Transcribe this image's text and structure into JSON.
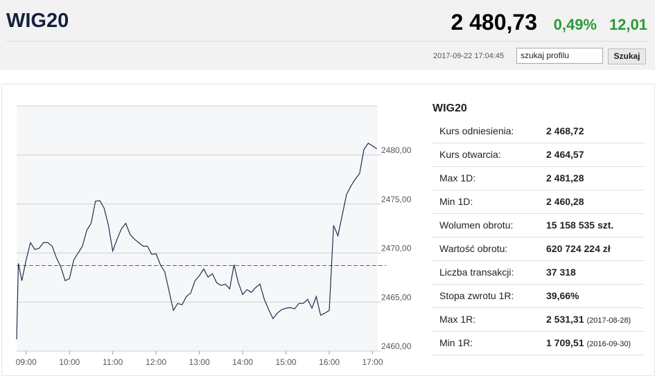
{
  "header": {
    "title": "WIG20",
    "price": "2 480,73",
    "change_pct": "0,49%",
    "change": "12,01",
    "timestamp": "2017-09-22 17:04:45",
    "search_placeholder": "szukaj profilu",
    "search_button": "Szukaj"
  },
  "chart_data": {
    "type": "line",
    "color": "#1f2d4d",
    "reference_line": 2468.72,
    "reference_color": "#d9322f",
    "x": [
      8.78,
      8.82,
      8.9,
      9.0,
      9.1,
      9.2,
      9.3,
      9.4,
      9.5,
      9.6,
      9.7,
      9.8,
      9.9,
      10.0,
      10.1,
      10.2,
      10.3,
      10.4,
      10.5,
      10.6,
      10.7,
      10.8,
      10.9,
      11.0,
      11.1,
      11.2,
      11.3,
      11.4,
      11.5,
      11.6,
      11.7,
      11.8,
      11.9,
      12.0,
      12.1,
      12.2,
      12.3,
      12.4,
      12.5,
      12.6,
      12.7,
      12.8,
      12.9,
      13.0,
      13.1,
      13.2,
      13.3,
      13.4,
      13.5,
      13.6,
      13.7,
      13.8,
      13.9,
      14.0,
      14.1,
      14.2,
      14.3,
      14.4,
      14.5,
      14.6,
      14.7,
      14.8,
      14.9,
      15.0,
      15.1,
      15.2,
      15.3,
      15.4,
      15.5,
      15.6,
      15.7,
      15.8,
      15.9,
      16.0,
      16.1,
      16.2,
      16.3,
      16.4,
      16.5,
      16.6,
      16.7,
      16.8,
      16.9,
      17.0,
      17.1
    ],
    "values": [
      2461.2,
      2468.94,
      2467.18,
      2469.3,
      2471.06,
      2470.35,
      2470.49,
      2471.06,
      2471.06,
      2470.7,
      2469.51,
      2468.59,
      2467.18,
      2467.39,
      2469.3,
      2470.0,
      2470.7,
      2472.32,
      2473.03,
      2475.28,
      2475.35,
      2474.58,
      2472.82,
      2470.21,
      2471.41,
      2472.46,
      2473.03,
      2471.9,
      2471.41,
      2471.06,
      2470.7,
      2470.7,
      2469.86,
      2469.93,
      2468.8,
      2468.1,
      2466.13,
      2464.15,
      2464.86,
      2464.72,
      2465.56,
      2465.92,
      2467.18,
      2467.68,
      2468.38,
      2467.54,
      2467.89,
      2466.97,
      2466.69,
      2466.83,
      2466.34,
      2468.8,
      2466.97,
      2465.77,
      2466.27,
      2465.99,
      2466.48,
      2466.83,
      2465.28,
      2464.23,
      2463.31,
      2463.87,
      2464.23,
      2464.37,
      2464.44,
      2464.3,
      2464.86,
      2464.86,
      2465.28,
      2464.37,
      2465.56,
      2463.66,
      2463.87,
      2464.15,
      2472.82,
      2471.76,
      2473.87,
      2475.99,
      2476.83,
      2477.54,
      2478.1,
      2480.56,
      2481.2,
      2480.92,
      2480.63
    ],
    "xlim": [
      8.78,
      17.12
    ],
    "ylim": [
      2460,
      2485
    ],
    "xticks": [
      {
        "value": 9,
        "label": "09:00"
      },
      {
        "value": 10,
        "label": "10:00"
      },
      {
        "value": 11,
        "label": "11:00"
      },
      {
        "value": 12,
        "label": "12:00"
      },
      {
        "value": 13,
        "label": "13:00"
      },
      {
        "value": 14,
        "label": "14:00"
      },
      {
        "value": 15,
        "label": "15:00"
      },
      {
        "value": 16,
        "label": "16:00"
      },
      {
        "value": 17,
        "label": "17:00"
      }
    ],
    "yticks": [
      {
        "value": 2460,
        "label": "2460,00"
      },
      {
        "value": 2465,
        "label": "2465,00"
      },
      {
        "value": 2470,
        "label": "2470,00"
      },
      {
        "value": 2475,
        "label": "2475,00"
      },
      {
        "value": 2480,
        "label": "2480,00"
      }
    ],
    "grid": true
  },
  "table": {
    "title": "WIG20",
    "rows": [
      [
        "Kurs odniesienia:",
        "2 468,72"
      ],
      [
        "Kurs otwarcia:",
        "2 464,57"
      ],
      [
        "Max 1D:",
        "2 481,28"
      ],
      [
        "Min 1D:",
        "2 460,28"
      ],
      [
        "Wolumen obrotu:",
        "15 158 535 szt."
      ],
      [
        "Wartość obrotu:",
        "620 724 224 zł"
      ],
      [
        "Liczba transakcji:",
        "37 318"
      ],
      [
        "Stopa zwrotu 1R:",
        "39,66%"
      ],
      [
        "Max 1R:",
        "2 531,31",
        "(2017-08-28)"
      ],
      [
        "Min 1R:",
        "1 709,51",
        "(2016-09-30)"
      ]
    ]
  }
}
